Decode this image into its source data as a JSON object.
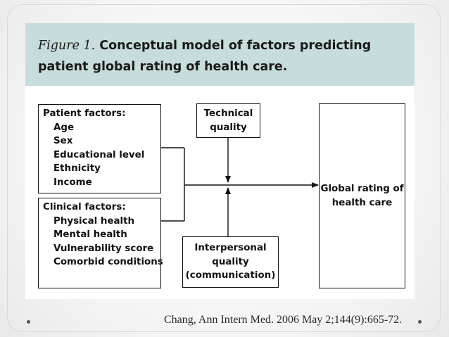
{
  "figure": {
    "title_lead": "Figure 1.",
    "title_rest": " Conceptual model of factors predicting patient global rating of health care."
  },
  "patient_factors": {
    "header": "Patient factors:",
    "items": [
      "Age",
      "Sex",
      "Educational level",
      "Ethnicity",
      "Income"
    ]
  },
  "clinical_factors": {
    "header": "Clinical factors:",
    "items": [
      "Physical health",
      "Mental health",
      "Vulnerability score",
      "Comorbid conditions"
    ]
  },
  "technical_quality": {
    "line1": "Technical",
    "line2": "quality"
  },
  "interpersonal_quality": {
    "line1": "Interpersonal",
    "line2": "quality",
    "line3": "(communication)"
  },
  "outcome": {
    "line1": "Global rating of",
    "line2": "health care"
  },
  "citation": "Chang, Ann Intern Med. 2006 May 2;144(9):665-72."
}
